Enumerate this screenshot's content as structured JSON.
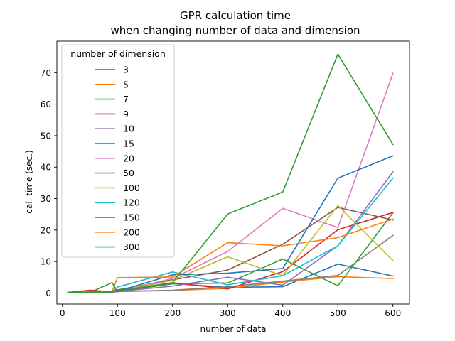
{
  "chart_data": {
    "type": "line",
    "title": "GPR calculation time",
    "subtitle": "when changing number of data and dimension",
    "xlabel": "number of data",
    "ylabel": "cal. time (sec.)",
    "xlim": [
      -10,
      630
    ],
    "ylim": [
      -3.5,
      80
    ],
    "xticks": [
      0,
      100,
      200,
      300,
      400,
      500,
      600
    ],
    "yticks": [
      0,
      10,
      20,
      30,
      40,
      50,
      60,
      70
    ],
    "grid": false,
    "legend": {
      "title": "number of dimension",
      "placement": "upper-left"
    },
    "x": [
      10,
      50,
      90,
      100,
      200,
      300,
      400,
      500,
      600
    ],
    "series": [
      {
        "name": "3",
        "color": "#1f77b4",
        "values": [
          0.2,
          0.3,
          0.3,
          0.5,
          3.0,
          1.8,
          2.0,
          9.2,
          5.4
        ]
      },
      {
        "name": "5",
        "color": "#ff7f0e",
        "values": [
          0.2,
          0.3,
          0.4,
          0.5,
          0.8,
          1.5,
          3.5,
          5.2,
          4.6
        ]
      },
      {
        "name": "7",
        "color": "#2ca02c",
        "values": [
          0.2,
          0.2,
          3.3,
          0.5,
          2.9,
          3.2,
          10.8,
          2.3,
          25.5
        ]
      },
      {
        "name": "9",
        "color": "#d62728",
        "values": [
          0.2,
          0.9,
          0.4,
          0.6,
          3.3,
          1.3,
          6.8,
          20.1,
          25.6
        ]
      },
      {
        "name": "10",
        "color": "#9467bd",
        "values": [
          0.2,
          0.3,
          0.4,
          0.5,
          2.2,
          5.0,
          2.5,
          15.0,
          38.5
        ]
      },
      {
        "name": "15",
        "color": "#8c564b",
        "values": [
          0.2,
          0.3,
          0.4,
          1.0,
          4.2,
          7.3,
          15.5,
          27.2,
          23.2
        ]
      },
      {
        "name": "20",
        "color": "#e377c2",
        "values": [
          0.2,
          0.3,
          0.4,
          0.6,
          4.6,
          13.2,
          26.9,
          20.8,
          69.8
        ]
      },
      {
        "name": "50",
        "color": "#7f7f7f",
        "values": [
          0.2,
          0.3,
          0.4,
          0.5,
          0.9,
          2.0,
          3.8,
          5.6,
          18.3
        ]
      },
      {
        "name": "100",
        "color": "#bcbd22",
        "values": [
          0.2,
          0.3,
          0.4,
          0.6,
          4.0,
          11.5,
          5.5,
          27.8,
          10.3
        ]
      },
      {
        "name": "120",
        "color": "#17becf",
        "values": [
          0.2,
          0.3,
          0.4,
          1.9,
          6.7,
          2.6,
          5.5,
          15.0,
          36.5
        ]
      },
      {
        "name": "150",
        "color": "#1f77b4",
        "values": [
          0.2,
          0.3,
          0.4,
          0.5,
          5.8,
          6.3,
          7.8,
          36.5,
          43.6
        ]
      },
      {
        "name": "200",
        "color": "#ff7f0e",
        "values": [
          0.2,
          0.3,
          0.4,
          4.9,
          5.1,
          16.0,
          15.0,
          17.6,
          23.5
        ]
      },
      {
        "name": "300",
        "color": "#2ca02c",
        "values": [
          0.2,
          0.3,
          0.4,
          0.7,
          3.3,
          25.1,
          32.1,
          75.9,
          47.2
        ]
      }
    ]
  }
}
